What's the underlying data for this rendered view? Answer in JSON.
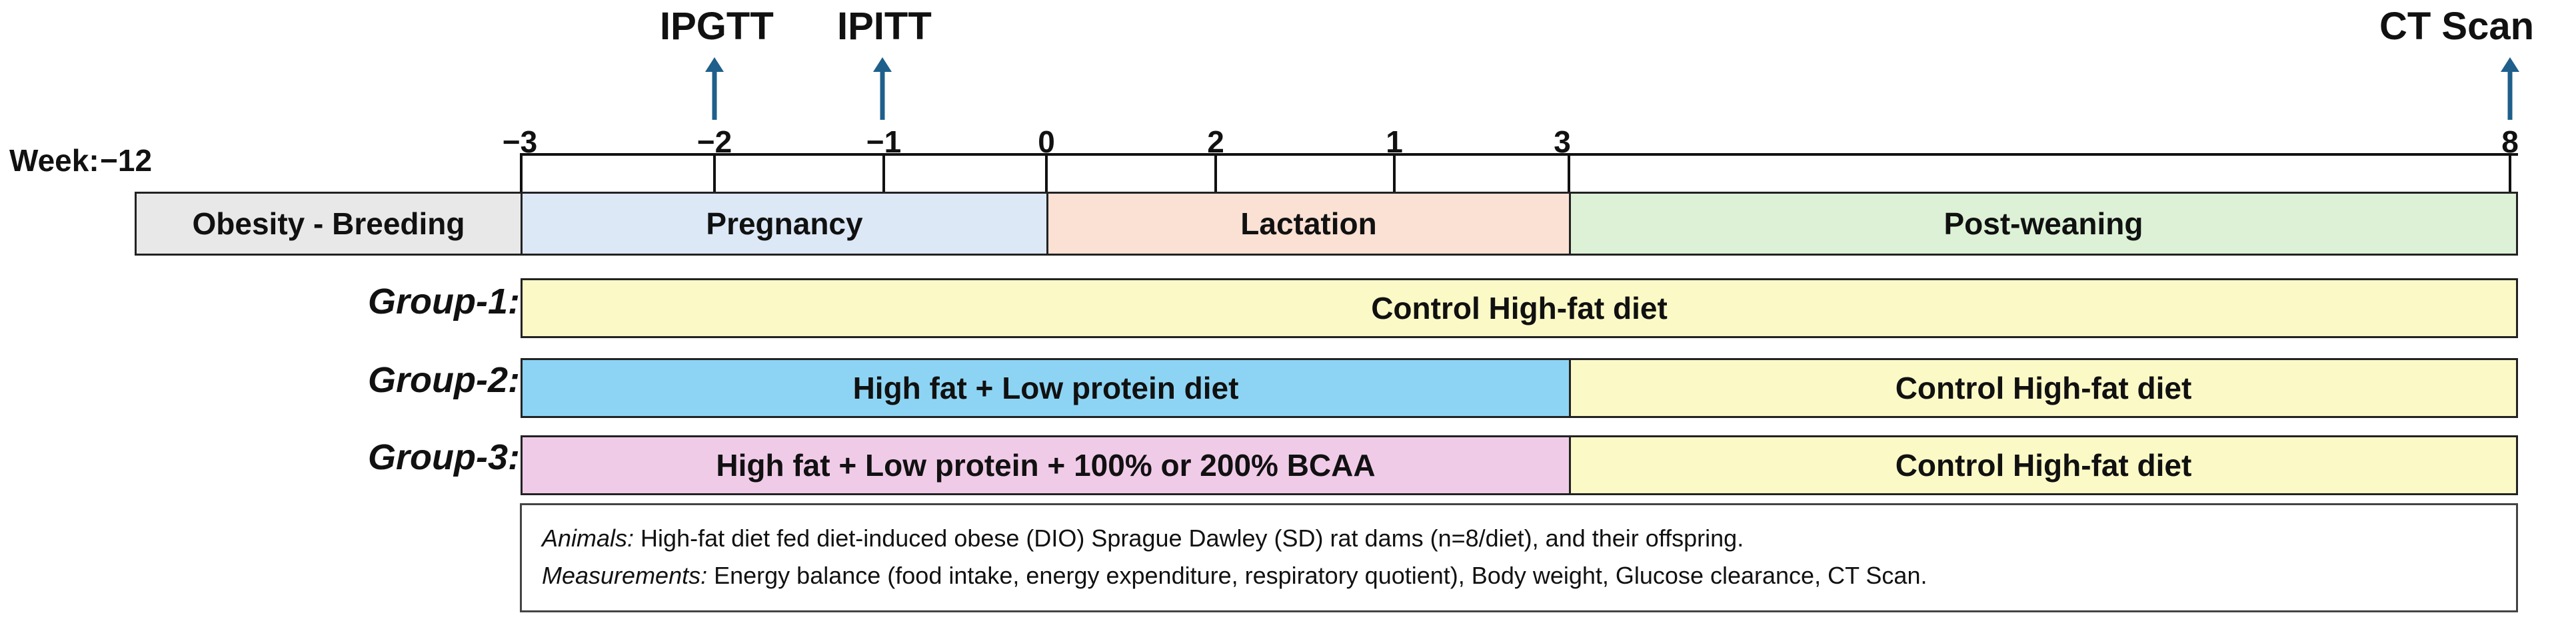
{
  "events": [
    {
      "label": "IPGTT"
    },
    {
      "label": "IPITT"
    },
    {
      "label": "CT Scan"
    }
  ],
  "timeline": {
    "week_label": "Week:",
    "start_tick": "−12",
    "ticks": [
      "−3",
      "−2",
      "−1",
      "0",
      "2",
      "1",
      "3",
      "8"
    ]
  },
  "phases": [
    {
      "label": "Obesity - Breeding",
      "color": "#e8e8e8"
    },
    {
      "label": "Pregnancy",
      "color": "#dce8f6"
    },
    {
      "label": "Lactation",
      "color": "#fbe0d4"
    },
    {
      "label": "Post-weaning",
      "color": "#dcf1d6"
    }
  ],
  "groups": [
    {
      "label": "Group-1:",
      "bars": [
        {
          "text": "Control High-fat diet",
          "color": "#fbf9c6"
        }
      ]
    },
    {
      "label": "Group-2:",
      "bars": [
        {
          "text": "High fat + Low protein diet",
          "color": "#8dd4f4"
        },
        {
          "text": "Control High-fat diet",
          "color": "#fbf9c6"
        }
      ]
    },
    {
      "label": "Group-3:",
      "bars": [
        {
          "text": "High fat + Low protein  + 100% or 200% BCAA",
          "color": "#f0cbe8"
        },
        {
          "text": "Control High-fat diet",
          "color": "#fbf9c6"
        }
      ]
    }
  ],
  "notes": {
    "animals_key": "Animals:",
    "animals_text": " High-fat diet fed diet-induced obese (DIO) Sprague Dawley (SD) rat dams (n=8/diet), and their offspring.",
    "measurements_key": "Measurements:",
    "measurements_text": " Energy balance (food intake, energy expenditure, respiratory quotient), Body weight, Glucose clearance, CT Scan."
  },
  "colors": {
    "arrow": "#1f5f8b",
    "border": "#222222"
  }
}
